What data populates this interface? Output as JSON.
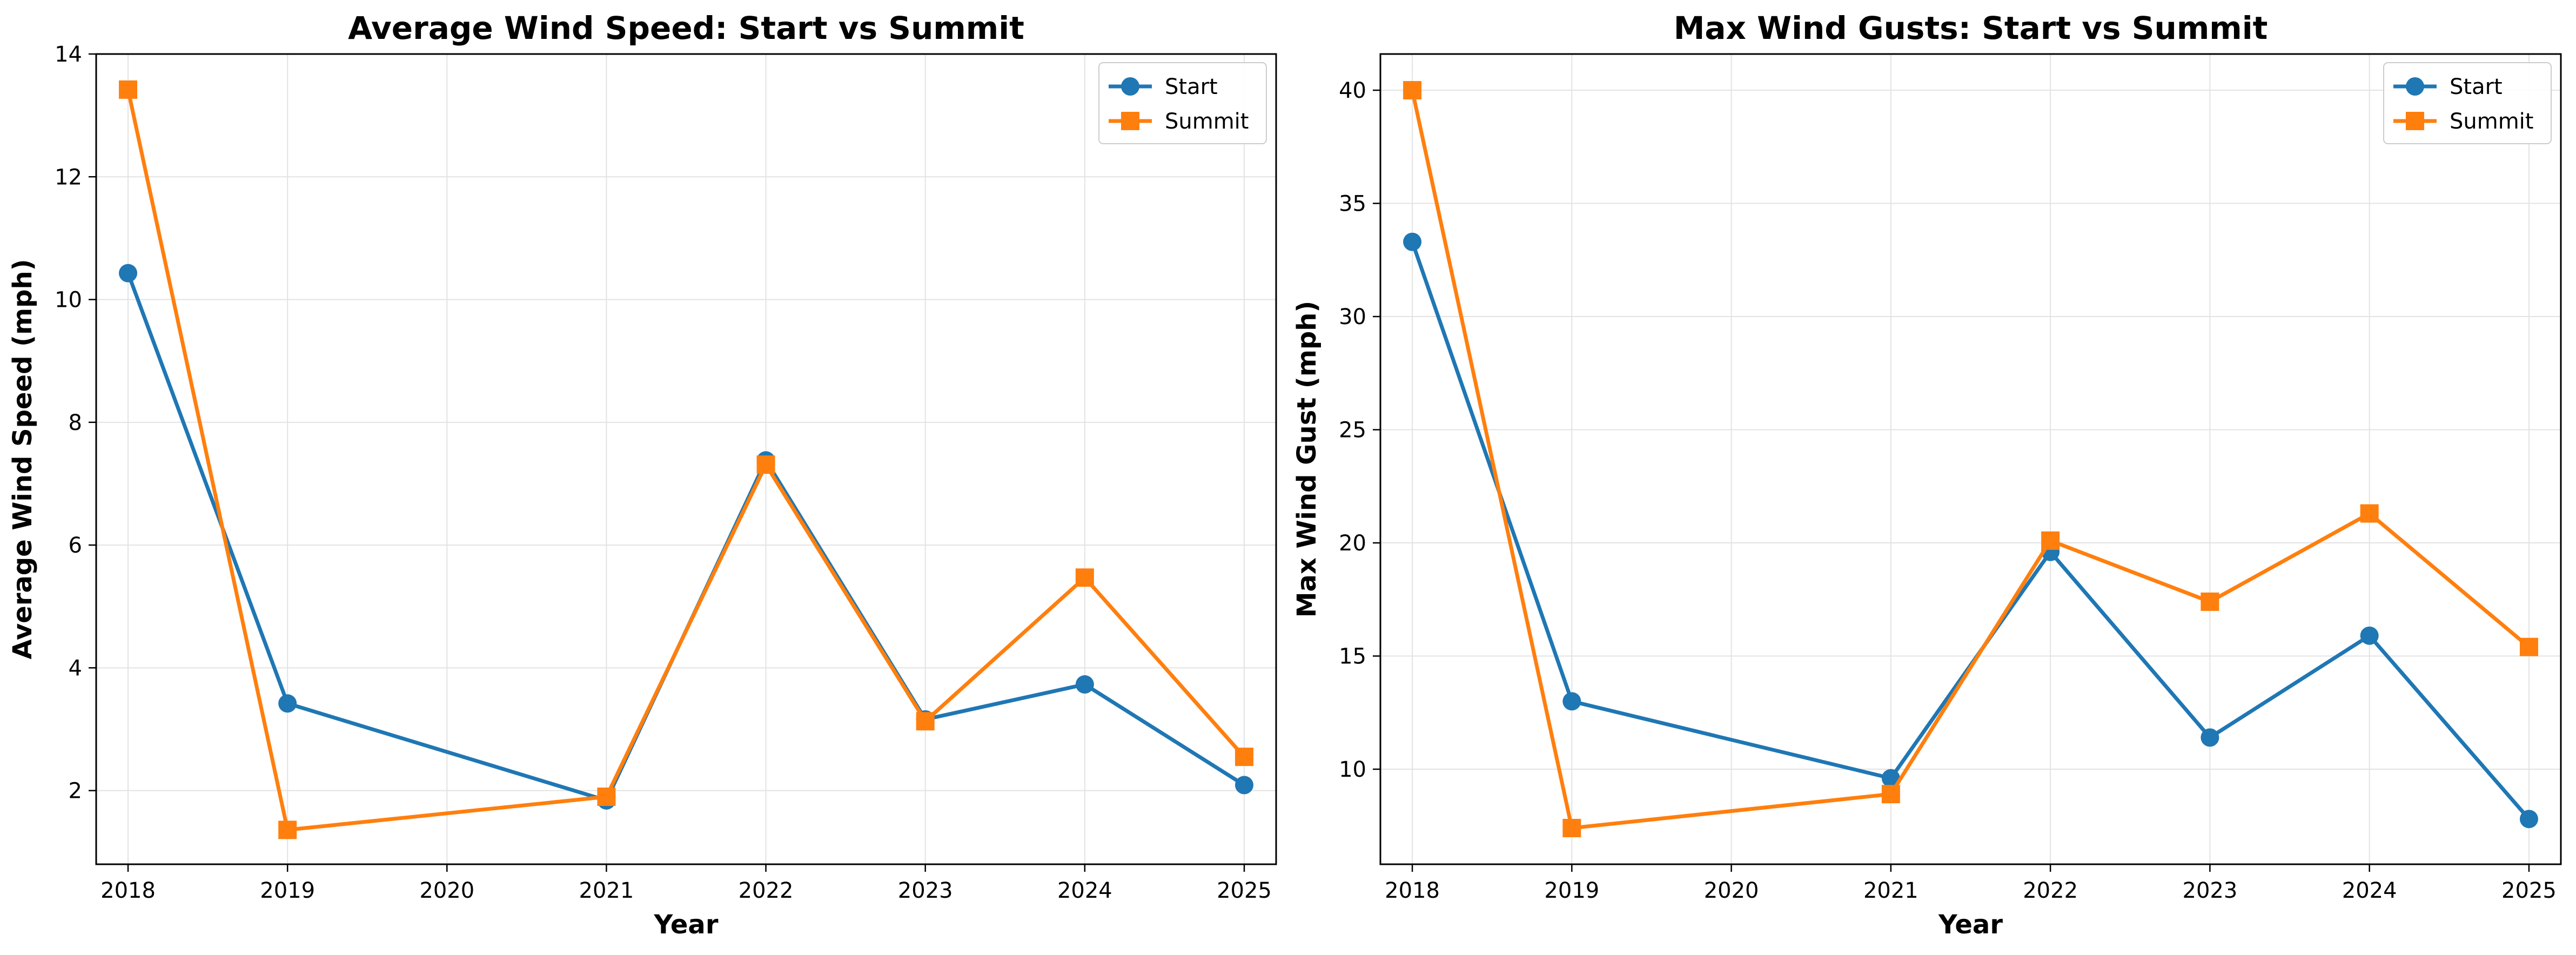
{
  "chart_data": [
    {
      "type": "line",
      "title": "Average Wind Speed: Start vs Summit",
      "xlabel": "Year",
      "ylabel": "Average Wind Speed (mph)",
      "xlim": [
        2017.8,
        2025.2
      ],
      "ylim": [
        0.8,
        14.0
      ],
      "xticks": [
        2018,
        2019,
        2020,
        2021,
        2022,
        2023,
        2024,
        2025
      ],
      "yticks": [
        2,
        4,
        6,
        8,
        10,
        12,
        14
      ],
      "grid": true,
      "legend_position": "top-right",
      "series": [
        {
          "name": "Start",
          "color": "#1f77b4",
          "marker": "circle",
          "x": [
            2018,
            2019,
            2021,
            2022,
            2023,
            2024,
            2025
          ],
          "y": [
            10.43,
            3.42,
            1.84,
            7.38,
            3.16,
            3.73,
            2.09
          ]
        },
        {
          "name": "Summit",
          "color": "#ff7f0e",
          "marker": "square",
          "x": [
            2018,
            2019,
            2021,
            2022,
            2023,
            2024,
            2025
          ],
          "y": [
            13.42,
            1.36,
            1.9,
            7.31,
            3.13,
            5.47,
            2.55
          ]
        }
      ]
    },
    {
      "type": "line",
      "title": "Max Wind Gusts: Start vs Summit",
      "xlabel": "Year",
      "ylabel": "Max Wind Gust (mph)",
      "xlim": [
        2017.8,
        2025.2
      ],
      "ylim": [
        5.8,
        41.6
      ],
      "xticks": [
        2018,
        2019,
        2020,
        2021,
        2022,
        2023,
        2024,
        2025
      ],
      "yticks": [
        10,
        15,
        20,
        25,
        30,
        35,
        40
      ],
      "grid": true,
      "legend_position": "top-right",
      "series": [
        {
          "name": "Start",
          "color": "#1f77b4",
          "marker": "circle",
          "x": [
            2018,
            2019,
            2021,
            2022,
            2023,
            2024,
            2025
          ],
          "y": [
            33.3,
            13.0,
            9.6,
            19.6,
            11.4,
            15.9,
            7.8
          ]
        },
        {
          "name": "Summit",
          "color": "#ff7f0e",
          "marker": "square",
          "x": [
            2018,
            2019,
            2021,
            2022,
            2023,
            2024,
            2025
          ],
          "y": [
            40.0,
            7.4,
            8.9,
            20.1,
            17.4,
            21.3,
            15.4
          ]
        }
      ]
    }
  ]
}
